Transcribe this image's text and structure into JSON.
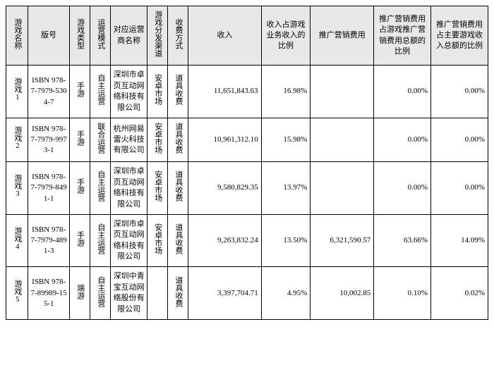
{
  "colors": {
    "header_bg": "#e8e8e8",
    "border": "#000000",
    "page_bg": "#ffffff",
    "text": "#000000"
  },
  "typography": {
    "font_family": "SimSun",
    "font_size_pt": 8
  },
  "table": {
    "type": "table",
    "headers": {
      "name": "游戏名称",
      "isbn": "版号",
      "type": "游戏类型",
      "mode": "运营模式",
      "operator": "对应运营商名称",
      "channel": "游戏分发渠道",
      "fee": "收费方式",
      "revenue": "收入",
      "revenue_ratio": "收入占游戏业务收入的比例",
      "marketing": "推广营销费用",
      "marketing_ratio_total": "推广营销费用占游戏推广营销费用总额的比例",
      "marketing_ratio_major": "推广营销费用占主要游戏收入总额的比例"
    },
    "rows": [
      {
        "name": "游戏1",
        "isbn": "ISBN 978-7-7979-5304-7",
        "type": "手游",
        "mode": "自主运营",
        "operator": "深圳市卓页互动网络科技有限公司",
        "channel": "安卓市场",
        "fee": "道具收费",
        "revenue": "11,651,843.63",
        "revenue_ratio": "16.98%",
        "marketing": "",
        "marketing_ratio_total": "0.00%",
        "marketing_ratio_major": "0.00%"
      },
      {
        "name": "游戏2",
        "isbn": "ISBN 978-7-7979-9973-1",
        "type": "手游",
        "mode": "联合运营",
        "operator": "杭州网易雷火科技有限公司",
        "channel": "安卓市场",
        "fee": "道具收费",
        "revenue": "10,961,312.10",
        "revenue_ratio": "15.98%",
        "marketing": "",
        "marketing_ratio_total": "0.00%",
        "marketing_ratio_major": "0.00%"
      },
      {
        "name": "游戏3",
        "isbn": "ISBN 978-7-7979-8491-1",
        "type": "手游",
        "mode": "自主运营",
        "operator": "深圳市卓页互动网络科技有限公司",
        "channel": "安卓市场",
        "fee": "道具收费",
        "revenue": "9,580,829.35",
        "revenue_ratio": "13.97%",
        "marketing": "",
        "marketing_ratio_total": "0.00%",
        "marketing_ratio_major": "0.00%"
      },
      {
        "name": "游戏4",
        "isbn": "ISBN 978-7-7979-4891-3",
        "type": "手游",
        "mode": "自主运营",
        "operator": "深圳市卓页互动网络科技有限公司",
        "channel": "安卓市场",
        "fee": "道具收费",
        "revenue": "9,263,832.24",
        "revenue_ratio": "13.50%",
        "marketing": "6,321,590.57",
        "marketing_ratio_total": "63.66%",
        "marketing_ratio_major": "14.09%"
      },
      {
        "name": "游戏5",
        "isbn": "ISBN 978-7-89989-155-1",
        "type": "端游",
        "mode": "自主运营",
        "operator": "深圳中青宝互动网络股份有限公司",
        "channel": "",
        "fee": "道具收费",
        "revenue": "3,397,704.71",
        "revenue_ratio": "4.95%",
        "marketing": "10,002.85",
        "marketing_ratio_total": "0.10%",
        "marketing_ratio_major": "0.02%"
      }
    ]
  }
}
